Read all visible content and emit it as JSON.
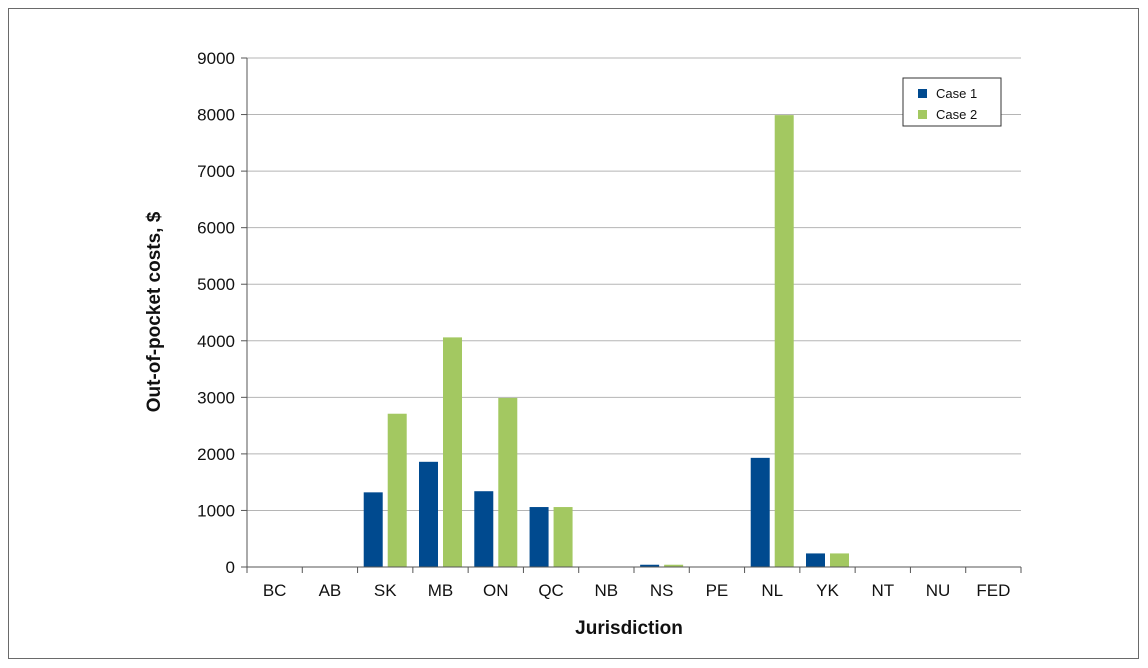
{
  "chart_data": {
    "type": "bar",
    "xlabel": "Jurisdiction",
    "ylabel": "Out-of-pocket costs, $",
    "ylim": [
      0,
      9000
    ],
    "yticks": [
      0,
      1000,
      2000,
      3000,
      4000,
      5000,
      6000,
      7000,
      8000,
      9000
    ],
    "grid": "horizontal",
    "legend_position": "top-right",
    "categories": [
      "BC",
      "AB",
      "SK",
      "MB",
      "ON",
      "QC",
      "NB",
      "NS",
      "PE",
      "NL",
      "YK",
      "NT",
      "NU",
      "FED"
    ],
    "series": [
      {
        "name": "Case 1",
        "color": "#004a8f",
        "values": [
          0,
          0,
          1320,
          1860,
          1340,
          1060,
          0,
          40,
          0,
          1930,
          240,
          0,
          0,
          0
        ]
      },
      {
        "name": "Case 2",
        "color": "#a3c861",
        "values": [
          0,
          0,
          2710,
          4060,
          2990,
          1060,
          0,
          40,
          0,
          7990,
          240,
          0,
          0,
          0
        ]
      }
    ]
  }
}
